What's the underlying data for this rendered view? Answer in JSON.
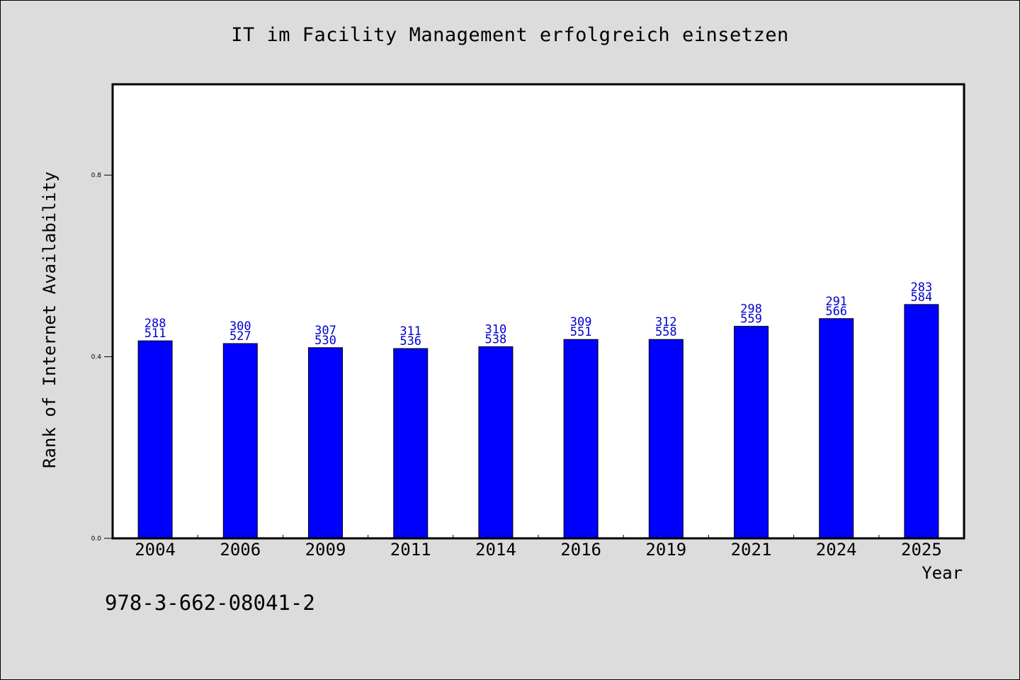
{
  "chart_data": {
    "type": "bar",
    "title": "IT im Facility Management erfolgreich einsetzen",
    "xlabel": "Year",
    "ylabel": "Rank of Internet Availability",
    "categories": [
      "2004",
      "2006",
      "2009",
      "2011",
      "2014",
      "2016",
      "2019",
      "2021",
      "2024",
      "2025"
    ],
    "values": [
      0.435,
      0.429,
      0.42,
      0.418,
      0.422,
      0.438,
      0.438,
      0.467,
      0.484,
      0.515
    ],
    "label_top": [
      "288",
      "300",
      "307",
      "311",
      "310",
      "309",
      "312",
      "298",
      "291",
      "283"
    ],
    "label_bottom": [
      "511",
      "527",
      "530",
      "536",
      "538",
      "551",
      "558",
      "559",
      "566",
      "584"
    ],
    "ylim": [
      0,
      1.0
    ],
    "yticks": [
      0.0,
      0.4,
      0.8
    ],
    "ytick_labels": [
      "0.0",
      "0.4",
      "0.8"
    ],
    "grid": false,
    "bar_color": "#0000ff",
    "label_color": "#0000cc"
  },
  "footer": {
    "isbn": "978-3-662-08041-2"
  }
}
